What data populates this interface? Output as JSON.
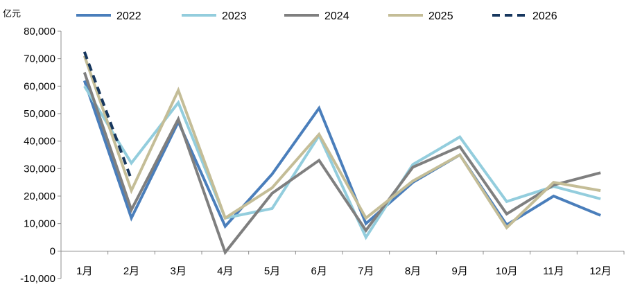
{
  "chart_data": {
    "type": "line",
    "unit_label": "亿元",
    "categories": [
      "1月",
      "2月",
      "3月",
      "4月",
      "5月",
      "6月",
      "7月",
      "8月",
      "9月",
      "10月",
      "11月",
      "12月"
    ],
    "ylim": [
      -10000,
      80000
    ],
    "yticks": [
      -10000,
      0,
      10000,
      20000,
      30000,
      40000,
      50000,
      60000,
      70000,
      80000
    ],
    "ytick_labels": [
      "-10,000",
      "0",
      "10,000",
      "20,000",
      "30,000",
      "40,000",
      "50,000",
      "60,000",
      "70,000",
      "80,000"
    ],
    "grid": false,
    "legend_position": "top",
    "series": [
      {
        "name": "2022",
        "color": "#4a7ebb",
        "dash": false,
        "values": [
          62000,
          12000,
          47000,
          9000,
          28000,
          52000,
          10000,
          25000,
          35000,
          9500,
          20000,
          13000
        ]
      },
      {
        "name": "2023",
        "color": "#93cddd",
        "dash": false,
        "values": [
          60000,
          32000,
          54000,
          12000,
          15500,
          42000,
          5000,
          31500,
          41500,
          18000,
          23500,
          19000
        ]
      },
      {
        "name": "2024",
        "color": "#7f7f7f",
        "dash": false,
        "values": [
          65000,
          15000,
          48000,
          -500,
          21000,
          33000,
          7500,
          30500,
          38000,
          13500,
          24000,
          28500
        ]
      },
      {
        "name": "2025",
        "color": "#c4bd97",
        "dash": false,
        "values": [
          71000,
          22000,
          58500,
          12000,
          23000,
          42500,
          12000,
          25500,
          35000,
          8500,
          25000,
          22000
        ]
      },
      {
        "name": "2026",
        "color": "#17375e",
        "dash": true,
        "values": [
          72500,
          26000,
          null,
          null,
          null,
          null,
          null,
          null,
          null,
          null,
          null,
          null
        ]
      }
    ]
  }
}
